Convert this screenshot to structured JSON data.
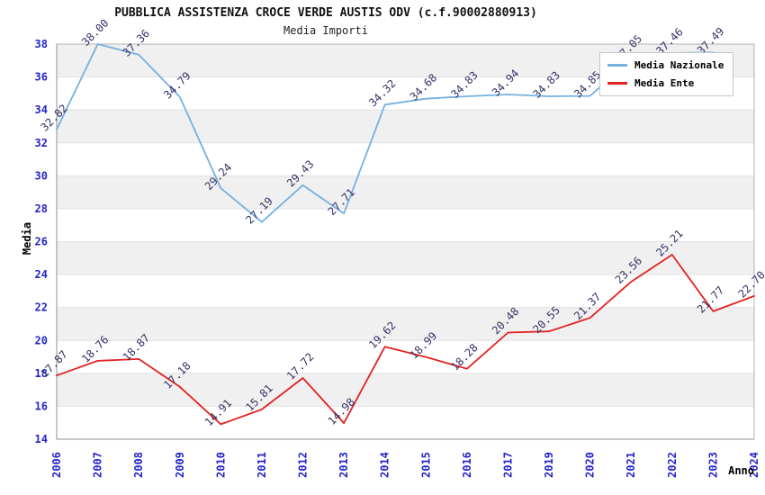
{
  "chart_data": {
    "type": "line",
    "title": "PUBBLICA ASSISTENZA CROCE VERDE AUSTIS ODV (c.f.90002880913)",
    "subtitle": "Media Importi",
    "xlabel": "Anno",
    "ylabel": "Media",
    "categories": [
      "2006",
      "2007",
      "2008",
      "2009",
      "2010",
      "2011",
      "2012",
      "2013",
      "2014",
      "2015",
      "2016",
      "2017",
      "2019",
      "2020",
      "2021",
      "2022",
      "2023",
      "2024"
    ],
    "series": [
      {
        "name": "Media Nazionale",
        "color": "#75b0e0",
        "values": [
          32.82,
          38.0,
          37.36,
          34.79,
          29.24,
          27.19,
          29.43,
          27.71,
          34.32,
          34.68,
          34.83,
          34.94,
          34.83,
          34.85,
          37.05,
          37.46,
          37.49,
          null
        ]
      },
      {
        "name": "Media Ente",
        "color": "#e32222",
        "values": [
          17.87,
          18.76,
          18.87,
          17.18,
          14.91,
          15.81,
          17.72,
          14.98,
          19.62,
          18.99,
          18.28,
          20.48,
          20.55,
          21.37,
          23.56,
          25.21,
          21.77,
          22.7
        ]
      }
    ],
    "ylim": [
      14,
      38
    ],
    "ytick_step": 2,
    "grid": "horizontal-bands",
    "legend_position": "top-right",
    "colors": {
      "tick_label": "#2424c8",
      "value_label": "#333366",
      "band_gray": "#f0f0f0",
      "band_white": "#ffffff",
      "band_line": "#e2e2e2",
      "plot_border": "#b4b4b4",
      "axis_line": "#8f8f8f"
    }
  }
}
